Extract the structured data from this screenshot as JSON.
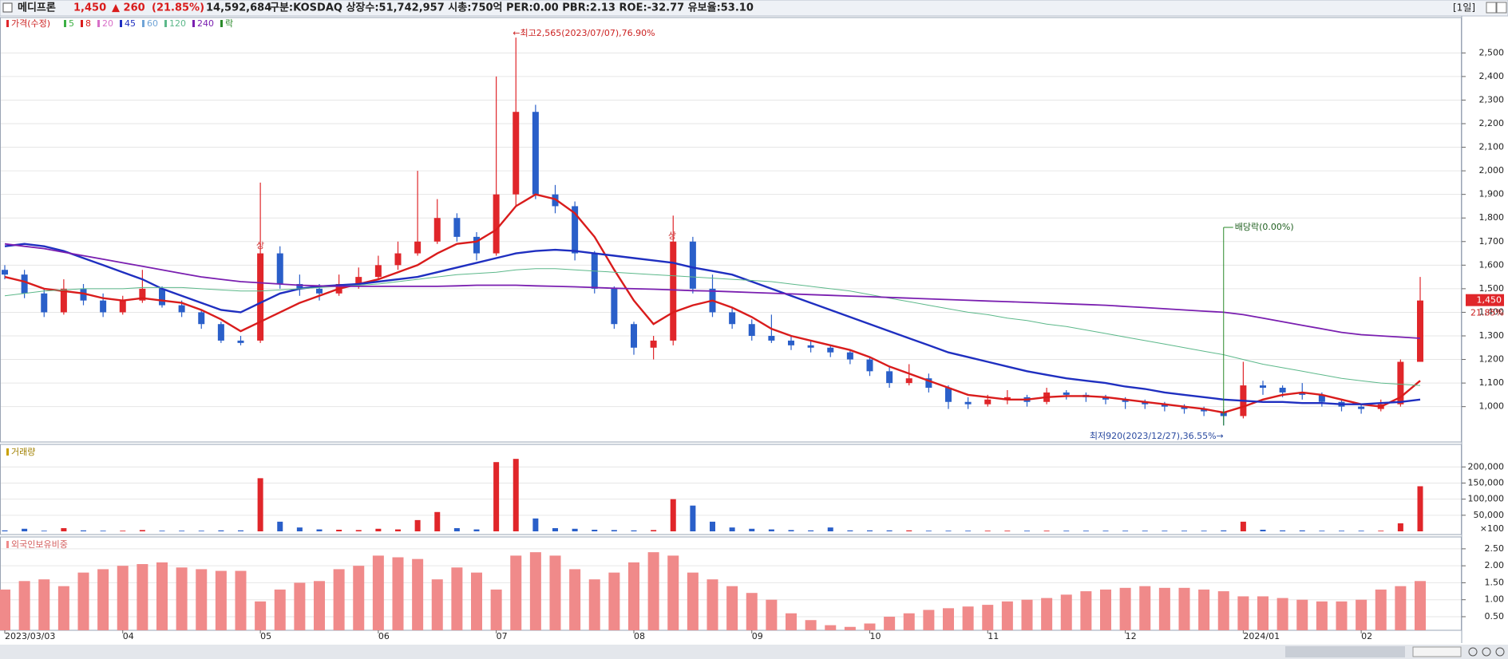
{
  "header": {
    "name": "메디프론",
    "price": "1,450",
    "change": "▲ 260",
    "change_rate": "(21.85%)",
    "volume": "14,592,684",
    "info": "구분:KOSDAQ 상장수:51,742,957 시총:750억 PER:0.00 PBR:2.13 ROE:-32.77 유보율:53.10",
    "period": "[1일]"
  },
  "chart_data": [
    {
      "type": "candlestick",
      "legend_price": "가격(수정)",
      "legend_ex": "락",
      "categories": [
        "2023/03/03",
        null,
        null,
        null,
        null,
        null,
        "04",
        null,
        null,
        null,
        null,
        null,
        null,
        "05",
        null,
        null,
        null,
        null,
        null,
        "06",
        null,
        null,
        null,
        null,
        null,
        "07",
        null,
        null,
        null,
        null,
        null,
        null,
        "08",
        null,
        null,
        null,
        null,
        null,
        "09",
        null,
        null,
        null,
        null,
        null,
        "10",
        null,
        null,
        null,
        null,
        null,
        "11",
        null,
        null,
        null,
        null,
        null,
        null,
        "12",
        null,
        null,
        null,
        null,
        null,
        "2024/01",
        null,
        null,
        null,
        null,
        null,
        "02",
        null,
        null,
        null
      ],
      "open": [
        1580,
        1560,
        1480,
        1400,
        1500,
        1450,
        1400,
        1450,
        1500,
        1430,
        1400,
        1350,
        1280,
        1280,
        1650,
        1520,
        1500,
        1480,
        1520,
        1550,
        1600,
        1650,
        1700,
        1800,
        1720,
        1650,
        1900,
        2250,
        1900,
        1850,
        1650,
        1500,
        1350,
        1250,
        1280,
        1700,
        1500,
        1400,
        1350,
        1300,
        1280,
        1260,
        1250,
        1230,
        1200,
        1150,
        1100,
        1120,
        1080,
        1020,
        1010,
        1030,
        1040,
        1020,
        1060,
        1050,
        1040,
        1030,
        1020,
        1010,
        1000,
        990,
        980,
        960,
        1090,
        1080,
        1060,
        1050,
        1020,
        1000,
        990,
        1010,
        1190
      ],
      "high": [
        1600,
        1580,
        1500,
        1540,
        1520,
        1480,
        1470,
        1580,
        1510,
        1450,
        1410,
        1360,
        1300,
        1950,
        1680,
        1560,
        1520,
        1560,
        1590,
        1640,
        1700,
        2000,
        1880,
        1820,
        1740,
        2400,
        2565,
        2280,
        1940,
        1870,
        1660,
        1510,
        1360,
        1300,
        1810,
        1720,
        1560,
        1420,
        1370,
        1390,
        1300,
        1280,
        1260,
        1240,
        1210,
        1170,
        1180,
        1140,
        1090,
        1040,
        1050,
        1070,
        1050,
        1080,
        1070,
        1060,
        1050,
        1040,
        1030,
        1020,
        1010,
        1000,
        990,
        1190,
        1110,
        1090,
        1100,
        1060,
        1030,
        1010,
        1030,
        1200,
        1550
      ],
      "low": [
        1540,
        1460,
        1380,
        1390,
        1430,
        1380,
        1390,
        1440,
        1420,
        1380,
        1330,
        1270,
        1260,
        1270,
        1500,
        1470,
        1450,
        1470,
        1500,
        1540,
        1580,
        1640,
        1690,
        1700,
        1620,
        1640,
        1850,
        1880,
        1820,
        1620,
        1480,
        1330,
        1220,
        1200,
        1260,
        1480,
        1380,
        1330,
        1280,
        1270,
        1240,
        1230,
        1210,
        1180,
        1130,
        1080,
        1090,
        1060,
        990,
        990,
        1000,
        1010,
        1000,
        1010,
        1030,
        1020,
        1010,
        990,
        990,
        980,
        970,
        960,
        920,
        950,
        1050,
        1040,
        1030,
        1000,
        980,
        970,
        980,
        1000,
        1190
      ],
      "close": [
        1560,
        1480,
        1400,
        1500,
        1450,
        1400,
        1450,
        1500,
        1430,
        1400,
        1350,
        1280,
        1270,
        1650,
        1520,
        1500,
        1480,
        1520,
        1550,
        1600,
        1650,
        1700,
        1800,
        1720,
        1650,
        1900,
        2250,
        1900,
        1850,
        1650,
        1500,
        1350,
        1250,
        1280,
        1700,
        1500,
        1400,
        1350,
        1300,
        1280,
        1260,
        1250,
        1230,
        1200,
        1150,
        1100,
        1120,
        1080,
        1020,
        1010,
        1030,
        1040,
        1020,
        1060,
        1050,
        1040,
        1030,
        1020,
        1010,
        1000,
        990,
        980,
        960,
        1090,
        1080,
        1060,
        1050,
        1020,
        1000,
        990,
        1010,
        1190,
        1450
      ],
      "up_color": "#e0262a",
      "down_color": "#2a5fc9",
      "moving_averages": [
        {
          "name": "5",
          "color": "#3cb043"
        },
        {
          "name": "8",
          "color": "#d91c1c",
          "values": [
            1550,
            1530,
            1500,
            1490,
            1480,
            1460,
            1450,
            1460,
            1450,
            1440,
            1410,
            1370,
            1320,
            1360,
            1400,
            1440,
            1470,
            1500,
            1520,
            1540,
            1570,
            1600,
            1650,
            1690,
            1700,
            1750,
            1850,
            1900,
            1880,
            1820,
            1720,
            1580,
            1450,
            1350,
            1400,
            1430,
            1450,
            1420,
            1380,
            1330,
            1300,
            1280,
            1260,
            1240,
            1210,
            1170,
            1140,
            1110,
            1080,
            1050,
            1040,
            1030,
            1030,
            1040,
            1045,
            1045,
            1040,
            1030,
            1020,
            1010,
            1000,
            990,
            975,
            1000,
            1030,
            1050,
            1060,
            1050,
            1030,
            1010,
            1000,
            1040,
            1110
          ]
        },
        {
          "name": "20",
          "color": "#d86fc8"
        },
        {
          "name": "45",
          "color": "#1f2fc0",
          "values": [
            1680,
            1690,
            1680,
            1660,
            1630,
            1600,
            1570,
            1540,
            1500,
            1470,
            1440,
            1410,
            1400,
            1440,
            1480,
            1500,
            1510,
            1515,
            1520,
            1530,
            1540,
            1550,
            1570,
            1590,
            1610,
            1630,
            1650,
            1660,
            1665,
            1660,
            1650,
            1640,
            1630,
            1620,
            1610,
            1590,
            1575,
            1560,
            1530,
            1500,
            1470,
            1440,
            1410,
            1380,
            1350,
            1320,
            1290,
            1260,
            1230,
            1210,
            1190,
            1170,
            1150,
            1135,
            1120,
            1110,
            1100,
            1085,
            1075,
            1060,
            1050,
            1040,
            1030,
            1025,
            1020,
            1020,
            1015,
            1015,
            1010,
            1010,
            1015,
            1020,
            1030
          ]
        },
        {
          "name": "60",
          "color": "#6fa3d6"
        },
        {
          "name": "120",
          "color": "#5cb88a",
          "values": [
            1470,
            1480,
            1490,
            1495,
            1500,
            1500,
            1500,
            1505,
            1505,
            1505,
            1500,
            1495,
            1490,
            1490,
            1495,
            1500,
            1505,
            1510,
            1515,
            1520,
            1530,
            1540,
            1550,
            1560,
            1565,
            1570,
            1580,
            1585,
            1585,
            1580,
            1575,
            1570,
            1565,
            1560,
            1555,
            1550,
            1545,
            1540,
            1535,
            1530,
            1520,
            1510,
            1500,
            1490,
            1475,
            1460,
            1445,
            1430,
            1415,
            1400,
            1390,
            1375,
            1365,
            1350,
            1340,
            1325,
            1310,
            1295,
            1280,
            1265,
            1250,
            1235,
            1220,
            1200,
            1180,
            1165,
            1150,
            1135,
            1120,
            1110,
            1100,
            1095,
            1090
          ]
        },
        {
          "name": "240",
          "color": "#7a1fb0",
          "values": [
            1690,
            1680,
            1670,
            1655,
            1640,
            1625,
            1610,
            1595,
            1580,
            1565,
            1550,
            1540,
            1530,
            1525,
            1520,
            1515,
            1512,
            1510,
            1510,
            1510,
            1510,
            1510,
            1510,
            1512,
            1515,
            1515,
            1515,
            1512,
            1510,
            1508,
            1505,
            1502,
            1500,
            1498,
            1495,
            1492,
            1490,
            1487,
            1484,
            1481,
            1478,
            1475,
            1472,
            1469,
            1466,
            1463,
            1460,
            1457,
            1454,
            1451,
            1448,
            1445,
            1442,
            1439,
            1436,
            1433,
            1430,
            1425,
            1420,
            1415,
            1410,
            1405,
            1400,
            1390,
            1375,
            1360,
            1345,
            1330,
            1315,
            1305,
            1300,
            1295,
            1290
          ]
        }
      ],
      "ylim": [
        850,
        2650
      ],
      "yticks": [
        {
          "value": 1000,
          "label": "1,000"
        },
        {
          "value": 1100,
          "label": "1,100"
        },
        {
          "value": 1200,
          "label": "1,200"
        },
        {
          "value": 1300,
          "label": "1,300"
        },
        {
          "value": 1400,
          "label": "1,400"
        },
        {
          "value": 1500,
          "label": "1,500"
        },
        {
          "value": 1600,
          "label": "1,600"
        },
        {
          "value": 1700,
          "label": "1,700"
        },
        {
          "value": 1800,
          "label": "1,800"
        },
        {
          "value": 1900,
          "label": "1,900"
        },
        {
          "value": 2000,
          "label": "2,000"
        },
        {
          "value": 2100,
          "label": "2,100"
        },
        {
          "value": 2200,
          "label": "2,200"
        },
        {
          "value": 2300,
          "label": "2,300"
        },
        {
          "value": 2400,
          "label": "2,400"
        },
        {
          "value": 2500,
          "label": "2,500"
        }
      ],
      "last_price": {
        "value": 1450,
        "label": "1,450"
      },
      "last_rate": "21.85%",
      "high_annotation": "←최고2,565(2023/07/07),76.90%",
      "low_annotation": "최저920(2023/12/27),36.55%→",
      "dividend_annotation": "배당락(0.00%)",
      "limit_up_label": "상"
    },
    {
      "type": "bar",
      "title": "거래량",
      "unit": "×100",
      "values": [
        3000,
        8000,
        2000,
        10000,
        3000,
        2000,
        2000,
        4000,
        2000,
        2000,
        2000,
        3000,
        3000,
        165000,
        30000,
        12000,
        6000,
        5000,
        4000,
        8000,
        6000,
        35000,
        60000,
        10000,
        6000,
        215000,
        225000,
        40000,
        10000,
        8000,
        5000,
        4000,
        3000,
        4000,
        100000,
        80000,
        30000,
        12000,
        8000,
        6000,
        4000,
        3000,
        12000,
        3000,
        3000,
        3000,
        3000,
        2000,
        2000,
        2000,
        2000,
        2000,
        2000,
        2000,
        2000,
        2000,
        2000,
        2000,
        2000,
        2000,
        2000,
        2000,
        3000,
        30000,
        5000,
        3000,
        3000,
        2000,
        2000,
        2000,
        2000,
        25000,
        140000
      ],
      "ylim": [
        0,
        270000
      ],
      "yticks": [
        {
          "value": 50000,
          "label": "50,000"
        },
        {
          "value": 100000,
          "label": "100,000"
        },
        {
          "value": 150000,
          "label": "150,000"
        },
        {
          "value": 200000,
          "label": "200,000"
        }
      ]
    },
    {
      "type": "bar",
      "title": "외국인보유비중",
      "color": "#f08a8a",
      "values": [
        1.3,
        1.55,
        1.6,
        1.4,
        1.8,
        1.9,
        2.0,
        2.05,
        2.1,
        1.95,
        1.9,
        1.85,
        1.85,
        0.95,
        1.3,
        1.5,
        1.55,
        1.9,
        2.0,
        2.3,
        2.25,
        2.2,
        1.6,
        1.95,
        1.8,
        1.3,
        2.3,
        2.4,
        2.3,
        1.9,
        1.6,
        1.8,
        2.1,
        2.4,
        2.3,
        1.8,
        1.6,
        1.4,
        1.2,
        1.0,
        0.6,
        0.4,
        0.25,
        0.2,
        0.3,
        0.5,
        0.6,
        0.7,
        0.75,
        0.8,
        0.85,
        0.95,
        1.0,
        1.05,
        1.15,
        1.25,
        1.3,
        1.35,
        1.4,
        1.35,
        1.35,
        1.3,
        1.25,
        1.1,
        1.1,
        1.05,
        1.0,
        0.95,
        0.95,
        1.0,
        1.3,
        1.4,
        1.55
      ],
      "ylim": [
        0.1,
        2.85
      ],
      "yticks": [
        {
          "value": 0.5,
          "label": "0.50"
        },
        {
          "value": 1,
          "label": "1.00"
        },
        {
          "value": 1.5,
          "label": "1.50"
        },
        {
          "value": 2,
          "label": "2.00"
        },
        {
          "value": 2.5,
          "label": "2.50"
        }
      ]
    }
  ]
}
